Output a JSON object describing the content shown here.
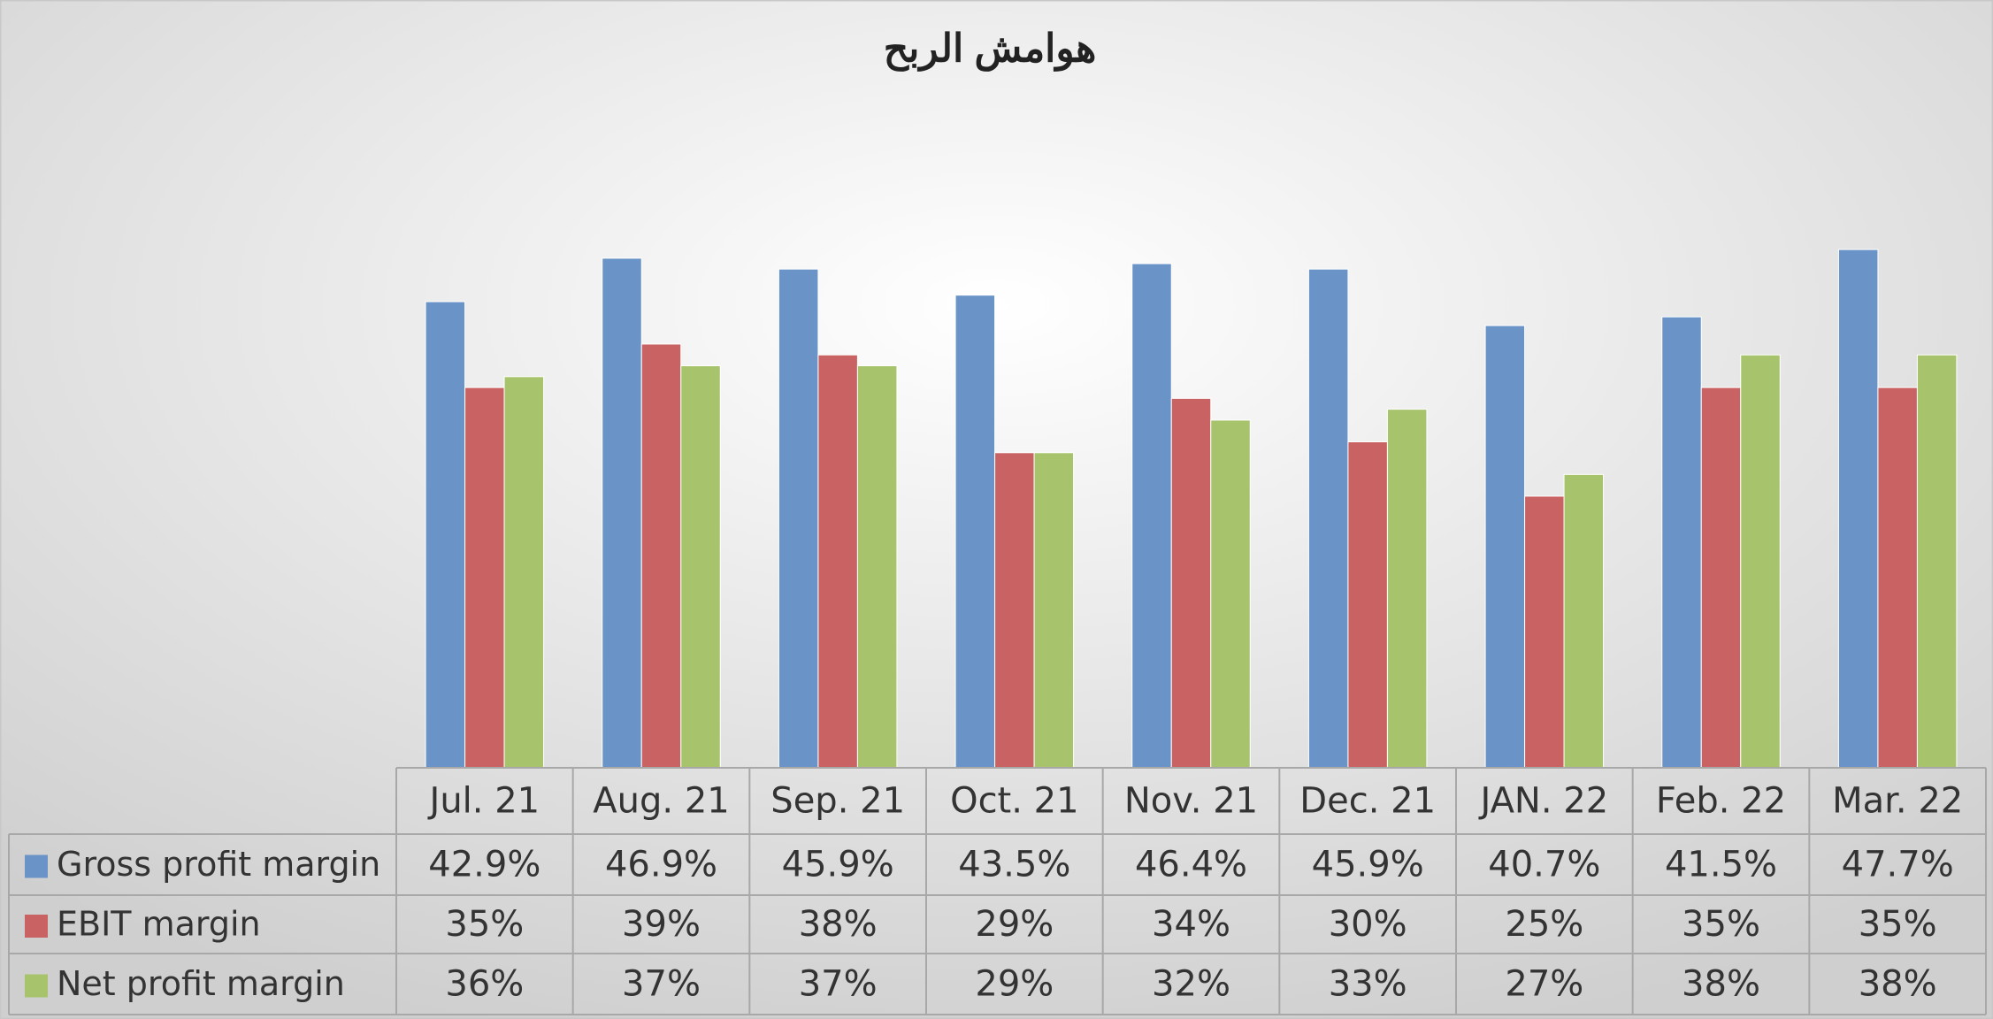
{
  "chart_data": {
    "type": "bar",
    "title": "هوامش الربح",
    "categories": [
      "Jul. 21",
      "Aug. 21",
      "Sep. 21",
      "Oct. 21",
      "Nov. 21",
      "Dec. 21",
      "JAN. 22",
      "Feb. 22",
      "Mar. 22"
    ],
    "series": [
      {
        "name": "Gross profit margin",
        "color": "#6a93c8",
        "values": [
          42.9,
          46.9,
          45.9,
          43.5,
          46.4,
          45.9,
          40.7,
          41.5,
          47.7
        ],
        "value_labels": [
          "42.9%",
          "46.9%",
          "45.9%",
          "43.5%",
          "46.4%",
          "45.9%",
          "40.7%",
          "41.5%",
          "47.7%"
        ]
      },
      {
        "name": "EBIT margin",
        "color": "#c96363",
        "values": [
          35,
          39,
          38,
          29,
          34,
          30,
          25,
          35,
          35
        ],
        "value_labels": [
          "35%",
          "39%",
          "38%",
          "29%",
          "34%",
          "30%",
          "25%",
          "35%",
          "35%"
        ]
      },
      {
        "name": "Net profit margin",
        "color": "#a7c46c",
        "values": [
          36,
          37,
          37,
          29,
          32,
          33,
          27,
          38,
          38
        ],
        "value_labels": [
          "36%",
          "37%",
          "37%",
          "29%",
          "32%",
          "33%",
          "27%",
          "38%",
          "38%"
        ]
      }
    ],
    "ylim": [
      0,
      60
    ],
    "grid": false
  }
}
